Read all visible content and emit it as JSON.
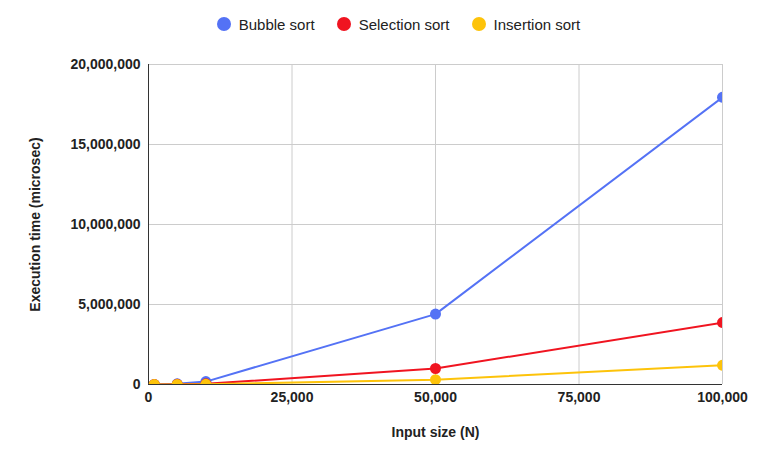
{
  "chart_data": {
    "type": "line",
    "x_label": "Input size (N)",
    "y_label": "Execution time (microsec)",
    "x": [
      1000,
      5000,
      10000,
      50000,
      100000
    ],
    "series": [
      {
        "name": "Bubble sort",
        "color": "#5472f5",
        "values": [
          2000,
          45000,
          180000,
          4400000,
          17950000
        ]
      },
      {
        "name": "Selection sort",
        "color": "#f01420",
        "values": [
          400,
          10000,
          40000,
          1000000,
          3870000
        ]
      },
      {
        "name": "Insertion sort",
        "color": "#fdc30a",
        "values": [
          100,
          3000,
          12000,
          300000,
          1200000
        ]
      }
    ],
    "xlim": [
      0,
      100000
    ],
    "xticks": [
      0,
      {
        "value": 25000,
        "label": "25,000"
      },
      {
        "value": 50000,
        "label": "50,000"
      },
      {
        "value": 75000,
        "label": "75,000"
      },
      {
        "value": 100000,
        "label": "100,000"
      }
    ],
    "ylim": [
      0,
      20000000
    ],
    "yticks": [
      0,
      {
        "value": 5000000,
        "label": "5,000,000"
      },
      {
        "value": 10000000,
        "label": "10,000,000"
      },
      {
        "value": 15000000,
        "label": "15,000,000"
      },
      {
        "value": 20000000,
        "label": "20,000,000"
      }
    ],
    "grid": true,
    "legend": "top",
    "marker": "circle"
  }
}
